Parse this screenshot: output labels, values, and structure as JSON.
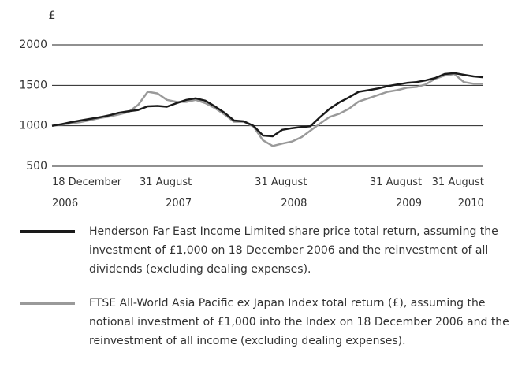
{
  "chart_data": {
    "type": "line",
    "ylabel": "£",
    "x": [
      "2006-12-18",
      "2007-01-18",
      "2007-02-18",
      "2007-03-18",
      "2007-04-18",
      "2007-05-18",
      "2007-06-18",
      "2007-07-18",
      "2007-08-18",
      "2007-09-18",
      "2007-10-18",
      "2007-11-18",
      "2007-12-18",
      "2008-01-18",
      "2008-02-18",
      "2008-03-18",
      "2008-04-18",
      "2008-05-18",
      "2008-06-18",
      "2008-07-18",
      "2008-08-18",
      "2008-09-18",
      "2008-10-18",
      "2008-11-18",
      "2008-12-18",
      "2009-01-18",
      "2009-02-18",
      "2009-03-18",
      "2009-04-18",
      "2009-05-18",
      "2009-06-18",
      "2009-07-18",
      "2009-08-18",
      "2009-09-18",
      "2009-10-18",
      "2009-11-18",
      "2009-12-18",
      "2010-01-18",
      "2010-02-18",
      "2010-03-18",
      "2010-04-18",
      "2010-05-18",
      "2010-06-18",
      "2010-07-18",
      "2010-08-18",
      "2010-09-18"
    ],
    "series": [
      {
        "name": "Henderson Far East Income Limited share price total return, assuming the investment of £1,000 on 18 December 2006 and the reinvestment of all dividends (excluding dealing expenses).",
        "color": "#1a1a1a",
        "values": [
          1000,
          1020,
          1045,
          1065,
          1085,
          1105,
          1130,
          1160,
          1180,
          1195,
          1240,
          1245,
          1235,
          1280,
          1320,
          1340,
          1310,
          1240,
          1160,
          1065,
          1055,
          1000,
          880,
          870,
          950,
          970,
          985,
          995,
          1110,
          1210,
          1290,
          1350,
          1420,
          1440,
          1460,
          1490,
          1510,
          1530,
          1540,
          1560,
          1590,
          1640,
          1650,
          1630,
          1610,
          1600
        ]
      },
      {
        "name": "FTSE All-World Asia Pacific ex Japan Index total return (£), assuming the notional investment of £1,000 into the Index on 18 December 2006 and the reinvestment of all income (excluding dealing expenses).",
        "color": "#9a9a9a",
        "values": [
          1000,
          1015,
          1030,
          1045,
          1070,
          1095,
          1115,
          1140,
          1170,
          1260,
          1420,
          1400,
          1320,
          1295,
          1295,
          1320,
          1280,
          1220,
          1140,
          1050,
          1050,
          990,
          820,
          750,
          780,
          805,
          860,
          940,
          1030,
          1110,
          1150,
          1210,
          1300,
          1340,
          1380,
          1420,
          1440,
          1470,
          1480,
          1510,
          1580,
          1620,
          1640,
          1540,
          1520,
          1520
        ]
      }
    ],
    "xlim": [
      "2006-12-18",
      "2010-09-18"
    ],
    "xticks": [
      {
        "value": "2006-12-18",
        "label": "18 December 2006"
      },
      {
        "value": "2007-08-31",
        "label": "31 August 2007"
      },
      {
        "value": "2008-08-31",
        "label": "31 August 2008"
      },
      {
        "value": "2009-08-31",
        "label": "31 August 2009"
      },
      {
        "value": "2010-08-31",
        "label": "31 August 2010"
      }
    ],
    "ylim": [
      500,
      2000
    ],
    "yticks": [
      500,
      1000,
      1500,
      2000
    ],
    "grid": true
  }
}
